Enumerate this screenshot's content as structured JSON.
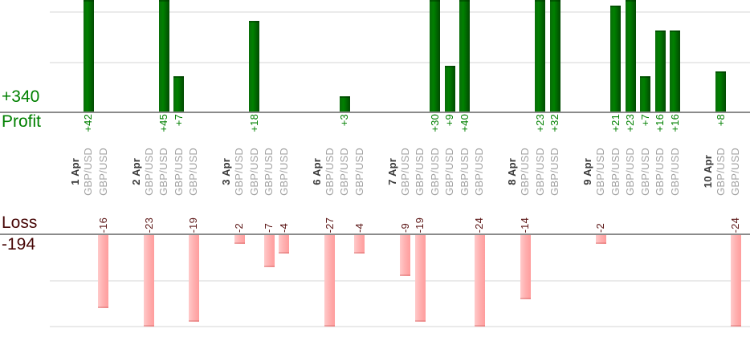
{
  "titles": {
    "profit_total": "+340",
    "profit_label": "Profit",
    "loss_label": "Loss",
    "loss_total": "-194"
  },
  "chart_data": {
    "type": "bar",
    "title": "Daily trade profit and loss by instrument",
    "symbol": "GBP/USD",
    "profit_axis": {
      "label": "Profit",
      "total": 340,
      "gridlines": [
        10,
        20
      ],
      "visible_range": [
        0,
        22
      ],
      "bars_clipped_above": 22
    },
    "loss_axis": {
      "label": "Loss",
      "total": -194,
      "gridlines": [
        -10,
        -20
      ],
      "visible_range": [
        -20,
        0
      ],
      "bars_clipped_below": -20
    },
    "colors": {
      "profit_bar": "#007a00",
      "loss_bar": "#ffb0b0",
      "profit_text": "#008000",
      "loss_text": "#5c1616",
      "loss_title_text": "#470707",
      "date_text": "#3a3a3a",
      "symbol_text": "#a2a2a2",
      "baseline": "#8b8b8b",
      "gridline": "#eaeaea"
    },
    "groups": [
      {
        "date": "1 Apr",
        "trades": [
          {
            "symbol": "GBP/USD",
            "value": 42,
            "label": "+42"
          },
          {
            "symbol": "GBP/USD",
            "value": -16,
            "label": "-16"
          }
        ]
      },
      {
        "date": "2 Apr",
        "trades": [
          {
            "symbol": "GBP/USD",
            "value": -23,
            "label": "-23"
          },
          {
            "symbol": "GBP/USD",
            "value": 45,
            "label": "+45"
          },
          {
            "symbol": "GBP/USD",
            "value": 7,
            "label": "+7"
          },
          {
            "symbol": "GBP/USD",
            "value": -19,
            "label": "-19"
          }
        ]
      },
      {
        "date": "3 Apr",
        "trades": [
          {
            "symbol": "GBP/USD",
            "value": -2,
            "label": "-2"
          },
          {
            "symbol": "GBP/USD",
            "value": 18,
            "label": "+18"
          },
          {
            "symbol": "GBP/USD",
            "value": -7,
            "label": "-7"
          },
          {
            "symbol": "GBP/USD",
            "value": -4,
            "label": "-4"
          }
        ]
      },
      {
        "date": "6 Apr",
        "trades": [
          {
            "symbol": "GBP/USD",
            "value": -27,
            "label": "-27"
          },
          {
            "symbol": "GBP/USD",
            "value": 3,
            "label": "+3"
          },
          {
            "symbol": "GBP/USD",
            "value": -4,
            "label": "-4"
          }
        ]
      },
      {
        "date": "7 Apr",
        "trades": [
          {
            "symbol": "GBP/USD",
            "value": -9,
            "label": "-9"
          },
          {
            "symbol": "GBP/USD",
            "value": -19,
            "label": "-19"
          },
          {
            "symbol": "GBP/USD",
            "value": 30,
            "label": "+30"
          },
          {
            "symbol": "GBP/USD",
            "value": 9,
            "label": "+9"
          },
          {
            "symbol": "GBP/USD",
            "value": 40,
            "label": "+40"
          },
          {
            "symbol": "GBP/USD",
            "value": -24,
            "label": "-24"
          }
        ]
      },
      {
        "date": "8 Apr",
        "trades": [
          {
            "symbol": "GBP/USD",
            "value": -14,
            "label": "-14"
          },
          {
            "symbol": "GBP/USD",
            "value": 23,
            "label": "+23"
          },
          {
            "symbol": "GBP/USD",
            "value": 32,
            "label": "+32"
          }
        ]
      },
      {
        "date": "9 Apr",
        "trades": [
          {
            "symbol": "GBP/USD",
            "value": -2,
            "label": "-2"
          },
          {
            "symbol": "GBP/USD",
            "value": 21,
            "label": "+21"
          },
          {
            "symbol": "GBP/USD",
            "value": 23,
            "label": "+23"
          },
          {
            "symbol": "GBP/USD",
            "value": 7,
            "label": "+7"
          },
          {
            "symbol": "GBP/USD",
            "value": 16,
            "label": "+16"
          },
          {
            "symbol": "GBP/USD",
            "value": 16,
            "label": "+16"
          }
        ]
      },
      {
        "date": "10 Apr",
        "trades": [
          {
            "symbol": "GBP/USD",
            "value": 8,
            "label": "+8"
          },
          {
            "symbol": "GBP/USD",
            "value": -24,
            "label": "-24"
          }
        ]
      }
    ]
  }
}
